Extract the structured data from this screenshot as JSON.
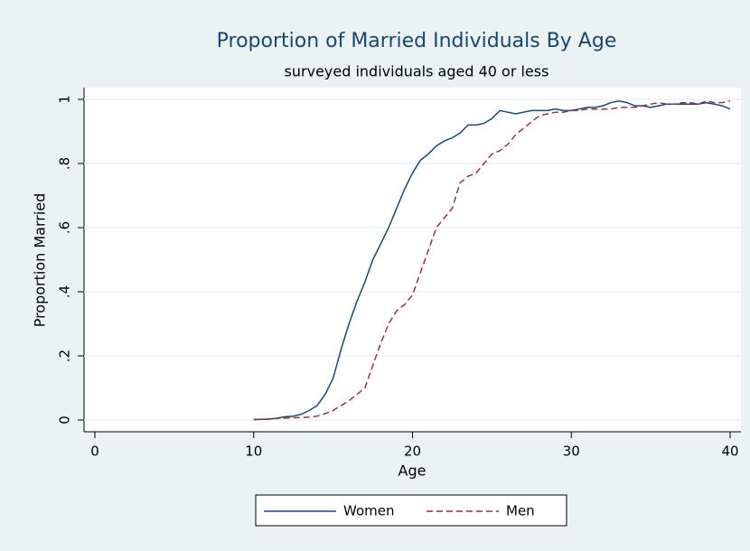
{
  "chart_data": {
    "type": "line",
    "title": "Proportion of Married Individuals By Age",
    "subtitle": "surveyed individuals aged 40 or less",
    "x_label": "Age",
    "y_label": "Proportion Married",
    "x": [
      10,
      10.5,
      11,
      11.5,
      12,
      12.5,
      13,
      13.5,
      14,
      14.5,
      15,
      15.5,
      16,
      16.5,
      17,
      17.5,
      18,
      18.5,
      19,
      19.5,
      20,
      20.5,
      21,
      21.5,
      22,
      22.5,
      23,
      23.5,
      24,
      24.5,
      25,
      25.5,
      26,
      26.5,
      27,
      27.5,
      28,
      28.5,
      29,
      29.5,
      30,
      30.5,
      31,
      31.5,
      32,
      32.5,
      33,
      33.5,
      34,
      34.5,
      35,
      35.5,
      36,
      36.5,
      37,
      37.5,
      38,
      38.5,
      39,
      39.5,
      40
    ],
    "series": [
      {
        "name": "Women",
        "color": "#1a476f",
        "dash": false,
        "values": [
          0.002,
          0.002,
          0.003,
          0.006,
          0.01,
          0.012,
          0.018,
          0.03,
          0.045,
          0.08,
          0.13,
          0.22,
          0.3,
          0.37,
          0.43,
          0.5,
          0.55,
          0.6,
          0.66,
          0.72,
          0.77,
          0.81,
          0.83,
          0.855,
          0.87,
          0.88,
          0.895,
          0.92,
          0.92,
          0.925,
          0.94,
          0.965,
          0.96,
          0.955,
          0.96,
          0.965,
          0.965,
          0.965,
          0.97,
          0.965,
          0.965,
          0.97,
          0.975,
          0.975,
          0.98,
          0.99,
          0.995,
          0.99,
          0.98,
          0.98,
          0.975,
          0.98,
          0.985,
          0.985,
          0.985,
          0.985,
          0.985,
          0.99,
          0.985,
          0.98,
          0.97
        ]
      },
      {
        "name": "Men",
        "color": "#90353b",
        "dash": true,
        "values": [
          0.001,
          0.002,
          0.003,
          0.005,
          0.006,
          0.007,
          0.008,
          0.009,
          0.012,
          0.02,
          0.03,
          0.045,
          0.06,
          0.08,
          0.1,
          0.17,
          0.24,
          0.3,
          0.34,
          0.36,
          0.39,
          0.46,
          0.53,
          0.6,
          0.63,
          0.66,
          0.74,
          0.76,
          0.77,
          0.8,
          0.83,
          0.84,
          0.86,
          0.89,
          0.91,
          0.93,
          0.95,
          0.955,
          0.96,
          0.96,
          0.965,
          0.965,
          0.97,
          0.97,
          0.97,
          0.97,
          0.975,
          0.975,
          0.975,
          0.98,
          0.985,
          0.99,
          0.985,
          0.985,
          0.99,
          0.99,
          0.985,
          0.995,
          0.99,
          0.99,
          0.995
        ]
      }
    ],
    "xlim": [
      0,
      40
    ],
    "xticks": [
      0,
      10,
      20,
      30,
      40
    ],
    "ylim": [
      0,
      1
    ],
    "yticks": [
      0,
      {
        "value": 0.2,
        "label": ".2"
      },
      {
        "value": 0.4,
        "label": ".4"
      },
      {
        "value": 0.6,
        "label": ".6"
      },
      {
        "value": 0.8,
        "label": ".8"
      },
      1
    ],
    "grid": true,
    "legend": "bottom"
  }
}
